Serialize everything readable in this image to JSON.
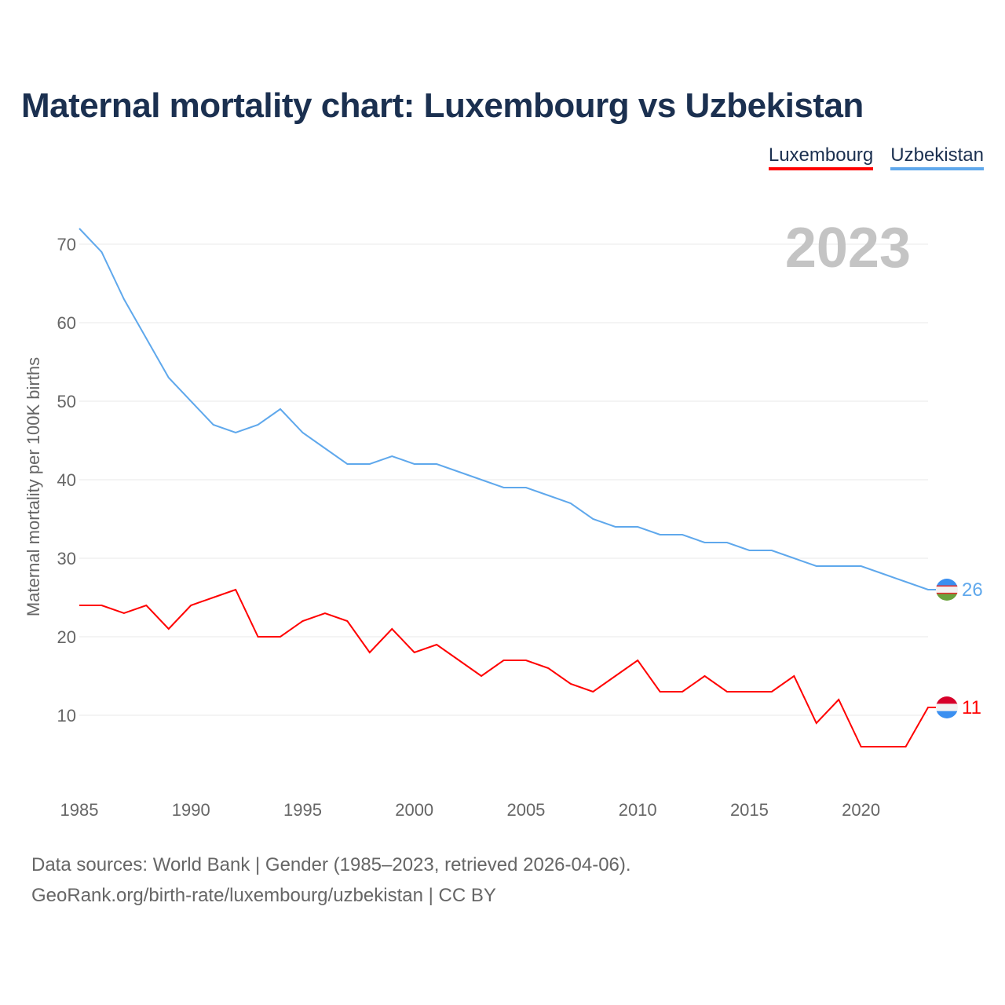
{
  "title": "Maternal mortality chart: Luxembourg vs Uzbekistan",
  "legend": [
    {
      "name": "Luxembourg",
      "color": "#ff0000"
    },
    {
      "name": "Uzbekistan",
      "color": "#5fa8ec"
    }
  ],
  "footer": {
    "line1": "Data sources: World Bank | Gender (1985–2023, retrieved 2026-04-06).",
    "line2": "GeoRank.org/birth-rate/luxembourg/uzbekistan | CC BY"
  },
  "chart_data": {
    "type": "line",
    "title": "Maternal mortality chart: Luxembourg vs Uzbekistan",
    "year_label": "2023",
    "xlabel": "",
    "ylabel": "Maternal mortality per 100K births",
    "xlim": [
      1985,
      2023
    ],
    "ylim": [
      0,
      75
    ],
    "xticks": [
      1985,
      1990,
      1995,
      2000,
      2005,
      2010,
      2015,
      2020
    ],
    "yticks": [
      10,
      20,
      30,
      40,
      50,
      60,
      70
    ],
    "grid": true,
    "legend_position": "top-right",
    "x": [
      1985,
      1986,
      1987,
      1988,
      1989,
      1990,
      1991,
      1992,
      1993,
      1994,
      1995,
      1996,
      1997,
      1998,
      1999,
      2000,
      2001,
      2002,
      2003,
      2004,
      2005,
      2006,
      2007,
      2008,
      2009,
      2010,
      2011,
      2012,
      2013,
      2014,
      2015,
      2016,
      2017,
      2018,
      2019,
      2020,
      2021,
      2022,
      2023
    ],
    "series": [
      {
        "name": "Luxembourg",
        "color": "#ff0000",
        "end_label": "11",
        "values": [
          24,
          24,
          23,
          24,
          21,
          24,
          25,
          26,
          20,
          20,
          22,
          23,
          22,
          18,
          21,
          18,
          19,
          17,
          15,
          17,
          17,
          16,
          14,
          13,
          15,
          17,
          13,
          13,
          15,
          13,
          13,
          13,
          15,
          9,
          12,
          6,
          6,
          6,
          11
        ]
      },
      {
        "name": "Uzbekistan",
        "color": "#5fa8ec",
        "end_label": "26",
        "values": [
          72,
          69,
          63,
          58,
          53,
          50,
          47,
          46,
          47,
          49,
          46,
          44,
          42,
          42,
          43,
          42,
          42,
          41,
          40,
          39,
          39,
          38,
          37,
          35,
          34,
          34,
          33,
          33,
          32,
          32,
          31,
          31,
          30,
          29,
          29,
          29,
          28,
          27,
          26
        ]
      }
    ]
  }
}
